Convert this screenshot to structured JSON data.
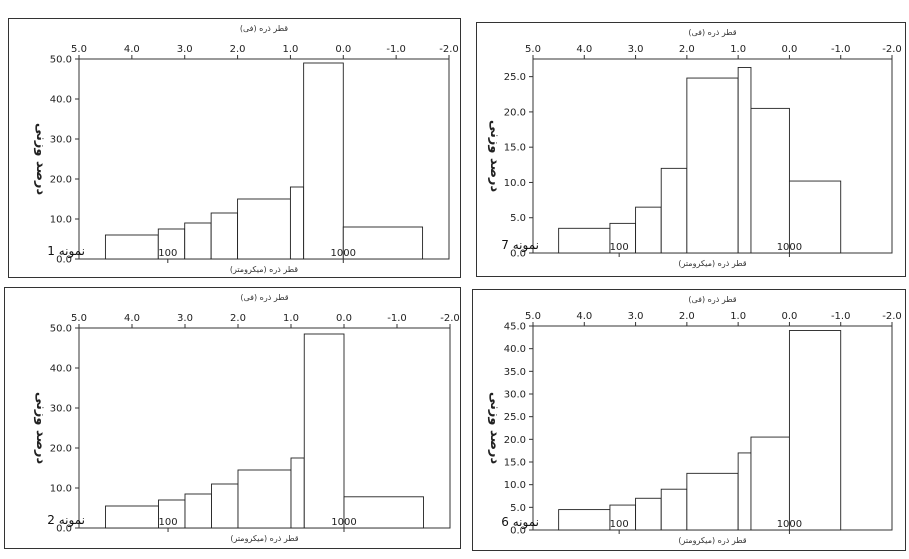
{
  "chart_data": [
    {
      "type": "bar",
      "sample_label": "نمونه 1",
      "top_axis_label": "قطر ذره (فی)",
      "bottom_axis_label": "قطر ذره (میکرومتر)",
      "ylabel": "درصد وزنی",
      "phi_ticks": [
        "5.0",
        "4.0",
        "3.0",
        "2.0",
        "1.0",
        "0.0",
        "-1.0",
        "-2.0"
      ],
      "um_ticks": [
        "100",
        "1000"
      ],
      "y_ticks": [
        "0.0",
        "10.0",
        "20.0",
        "30.0",
        "40.0",
        "50.0"
      ],
      "ylim": [
        0,
        50
      ],
      "bins_phi": [
        [
          4.5,
          3.5
        ],
        [
          3.5,
          3.0
        ],
        [
          3.0,
          2.5
        ],
        [
          2.5,
          2.0
        ],
        [
          2.0,
          1.0
        ],
        [
          1.0,
          0.75
        ],
        [
          0.75,
          0.0
        ],
        [
          0.0,
          -1.5
        ]
      ],
      "values": [
        6.0,
        7.5,
        9.0,
        11.5,
        15.0,
        18.0,
        49.0,
        8.0
      ]
    },
    {
      "type": "bar",
      "sample_label": "نمونه 7",
      "top_axis_label": "قطر ذره (فی)",
      "bottom_axis_label": "قطر ذره (میکرومتر)",
      "ylabel": "درصد وزنی",
      "phi_ticks": [
        "5.0",
        "4.0",
        "3.0",
        "2.0",
        "1.0",
        "0.0",
        "-1.0",
        "-2.0"
      ],
      "um_ticks": [
        "100",
        "1000"
      ],
      "y_ticks": [
        "0.0",
        "5.0",
        "10.0",
        "15.0",
        "20.0",
        "25.0"
      ],
      "ylim": [
        0,
        27.5
      ],
      "bins_phi": [
        [
          4.5,
          3.5
        ],
        [
          3.5,
          3.0
        ],
        [
          3.0,
          2.5
        ],
        [
          2.5,
          2.0
        ],
        [
          2.0,
          1.0
        ],
        [
          1.0,
          0.75
        ],
        [
          0.75,
          0.0
        ],
        [
          0.0,
          -1.0
        ]
      ],
      "values": [
        3.5,
        4.2,
        6.5,
        12.0,
        24.8,
        26.3,
        20.5,
        10.2
      ]
    },
    {
      "type": "bar",
      "sample_label": "نمونه 2",
      "top_axis_label": "قطر ذره (فی)",
      "bottom_axis_label": "قطر ذره (میکرومتر)",
      "ylabel": "درصد وزنی",
      "phi_ticks": [
        "5.0",
        "4.0",
        "3.0",
        "2.0",
        "1.0",
        "0.0",
        "-1.0",
        "-2.0"
      ],
      "um_ticks": [
        "100",
        "1000"
      ],
      "y_ticks": [
        "0.0",
        "10.0",
        "20.0",
        "30.0",
        "40.0",
        "50.0"
      ],
      "ylim": [
        0,
        50
      ],
      "bins_phi": [
        [
          4.5,
          3.5
        ],
        [
          3.5,
          3.0
        ],
        [
          3.0,
          2.5
        ],
        [
          2.5,
          2.0
        ],
        [
          2.0,
          1.0
        ],
        [
          1.0,
          0.75
        ],
        [
          0.75,
          0.0
        ],
        [
          0.0,
          -1.5
        ]
      ],
      "values": [
        5.5,
        7.0,
        8.5,
        11.0,
        14.5,
        17.5,
        48.5,
        7.8
      ]
    },
    {
      "type": "bar",
      "sample_label": "نمونه 6",
      "top_axis_label": "قطر ذره (فی)",
      "bottom_axis_label": "قطر ذره (میکرومتر)",
      "ylabel": "درصد وزنی",
      "phi_ticks": [
        "5.0",
        "4.0",
        "3.0",
        "2.0",
        "1.0",
        "0.0",
        "-1.0",
        "-2.0"
      ],
      "um_ticks": [
        "100",
        "1000"
      ],
      "y_ticks": [
        "0.0",
        "5.0",
        "10.0",
        "15.0",
        "20.0",
        "25.0",
        "30.0",
        "35.0",
        "40.0",
        "45.0"
      ],
      "ylim": [
        0,
        45
      ],
      "bins_phi": [
        [
          4.5,
          3.5
        ],
        [
          3.5,
          3.0
        ],
        [
          3.0,
          2.5
        ],
        [
          2.5,
          2.0
        ],
        [
          2.0,
          1.0
        ],
        [
          1.0,
          0.75
        ],
        [
          0.75,
          0.0
        ],
        [
          0.0,
          -1.0
        ]
      ],
      "values": [
        4.5,
        5.5,
        7.0,
        9.0,
        12.5,
        17.0,
        20.5,
        44.0
      ]
    }
  ]
}
